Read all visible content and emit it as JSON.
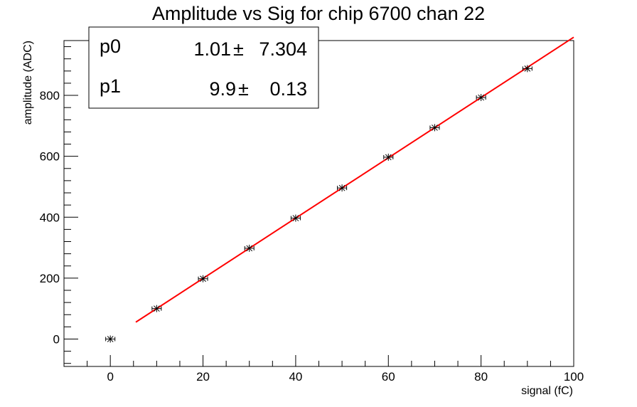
{
  "chart_data": {
    "type": "scatter",
    "title": "Amplitude vs Sig for chip 6700 chan 22",
    "xlabel": "signal (fC)",
    "ylabel": "amplitude (ADC)",
    "xlim": [
      -10,
      100
    ],
    "ylim": [
      -90,
      980
    ],
    "xticks": [
      0,
      20,
      40,
      60,
      80,
      100
    ],
    "yticks": [
      0,
      200,
      400,
      600,
      800
    ],
    "grid": false,
    "series": [
      {
        "x": [
          0,
          10,
          20,
          30,
          40,
          50,
          60,
          70,
          80,
          90
        ],
        "y": [
          0,
          100,
          198,
          298,
          397,
          496,
          597,
          694,
          793,
          888
        ],
        "x_err": 1,
        "marker": "star",
        "color": "#000000"
      }
    ],
    "fit": {
      "type": "linear",
      "color": "#ff0000",
      "x_range": [
        5.5,
        100
      ],
      "p0": 1.01,
      "p1": 9.9
    },
    "stats_box": {
      "position": "top-left",
      "rows": [
        {
          "name": "p0",
          "value": "1.01",
          "pm": "±",
          "error": "7.304"
        },
        {
          "name": "p1",
          "value": "9.9",
          "pm": "±",
          "error": "0.13"
        }
      ]
    }
  }
}
